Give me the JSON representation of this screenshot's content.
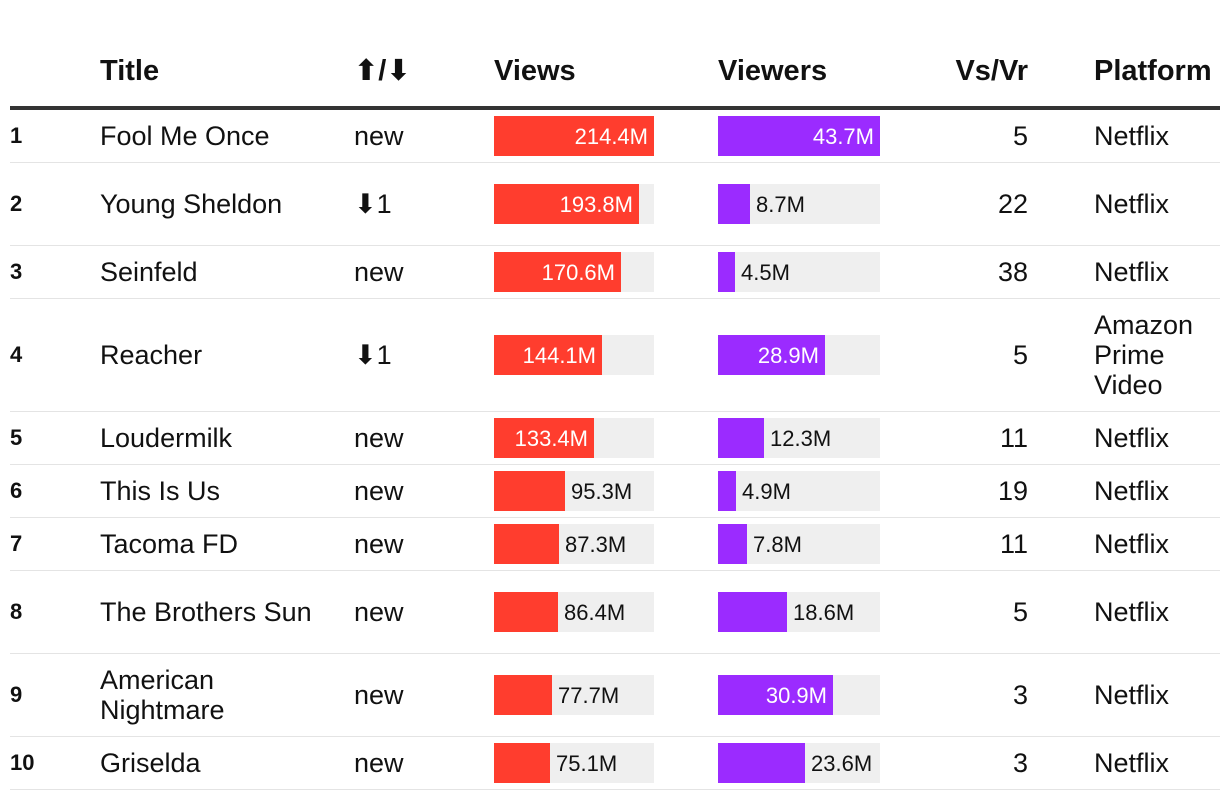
{
  "chart_data": {
    "type": "table",
    "columns": {
      "rank": "",
      "title": "Title",
      "change": "⬆/⬇",
      "views": "Views",
      "viewers": "Viewers",
      "vsvr": "Vs/Vr",
      "platform": "Platform"
    },
    "views_max": 214.4,
    "viewers_max": 43.7,
    "rows": [
      {
        "rank": "1",
        "title": "Fool Me Once",
        "change": "new",
        "views": 214.4,
        "views_label": "214.4M",
        "viewers": 43.7,
        "viewers_label": "43.7M",
        "vsvr": "5",
        "platform": "Netflix"
      },
      {
        "rank": "2",
        "title": "Young Sheldon",
        "change": "⬇1",
        "views": 193.8,
        "views_label": "193.8M",
        "viewers": 8.7,
        "viewers_label": "8.7M",
        "vsvr": "22",
        "platform": "Netflix"
      },
      {
        "rank": "3",
        "title": "Seinfeld",
        "change": "new",
        "views": 170.6,
        "views_label": "170.6M",
        "viewers": 4.5,
        "viewers_label": "4.5M",
        "vsvr": "38",
        "platform": "Netflix"
      },
      {
        "rank": "4",
        "title": "Reacher",
        "change": "⬇1",
        "views": 144.1,
        "views_label": "144.1M",
        "viewers": 28.9,
        "viewers_label": "28.9M",
        "vsvr": "5",
        "platform": "Amazon Prime Video"
      },
      {
        "rank": "5",
        "title": "Loudermilk",
        "change": "new",
        "views": 133.4,
        "views_label": "133.4M",
        "viewers": 12.3,
        "viewers_label": "12.3M",
        "vsvr": "11",
        "platform": "Netflix"
      },
      {
        "rank": "6",
        "title": "This Is Us",
        "change": "new",
        "views": 95.3,
        "views_label": "95.3M",
        "viewers": 4.9,
        "viewers_label": "4.9M",
        "vsvr": "19",
        "platform": "Netflix"
      },
      {
        "rank": "7",
        "title": "Tacoma FD",
        "change": "new",
        "views": 87.3,
        "views_label": "87.3M",
        "viewers": 7.8,
        "viewers_label": "7.8M",
        "vsvr": "11",
        "platform": "Netflix"
      },
      {
        "rank": "8",
        "title": "The Brothers Sun",
        "change": "new",
        "views": 86.4,
        "views_label": "86.4M",
        "viewers": 18.6,
        "viewers_label": "18.6M",
        "vsvr": "5",
        "platform": "Netflix"
      },
      {
        "rank": "9",
        "title": "American Nightmare",
        "change": "new",
        "views": 77.7,
        "views_label": "77.7M",
        "viewers": 30.9,
        "viewers_label": "30.9M",
        "vsvr": "3",
        "platform": "Netflix"
      },
      {
        "rank": "10",
        "title": "Griselda",
        "change": "new",
        "views": 75.1,
        "views_label": "75.1M",
        "viewers": 23.6,
        "viewers_label": "23.6M",
        "vsvr": "3",
        "platform": "Netflix"
      }
    ]
  },
  "colors": {
    "views_bar": "#ff3d2e",
    "viewers_bar": "#9b2bff",
    "bar_track": "#efefef"
  }
}
